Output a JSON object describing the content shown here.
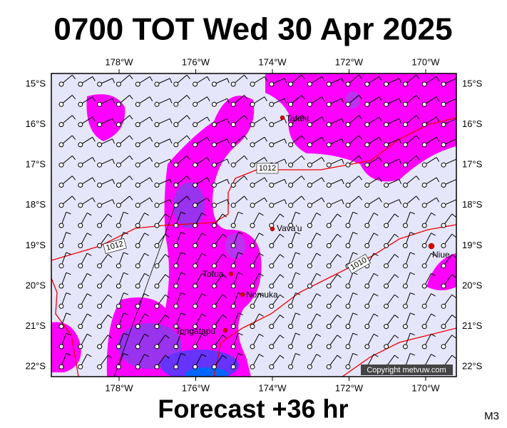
{
  "title": "0700 TOT Wed 30 Apr 2025",
  "map": {
    "lon_labels": [
      "178°W",
      "176°W",
      "174°W",
      "172°W",
      "170°W"
    ],
    "lat_labels": [
      "15°S",
      "16°S",
      "17°S",
      "18°S",
      "19°S",
      "20°S",
      "21°S",
      "22°S"
    ],
    "places": [
      "Tafahi",
      "Vava'u",
      "Niue",
      "Tofua",
      "Nomuka",
      "Tongatapu"
    ],
    "isobar_labels": [
      "1012",
      "1012",
      "1010"
    ],
    "copyright": "Copyright metvuw.com"
  },
  "footer": "Forecast +36 hr",
  "code": "M3"
}
